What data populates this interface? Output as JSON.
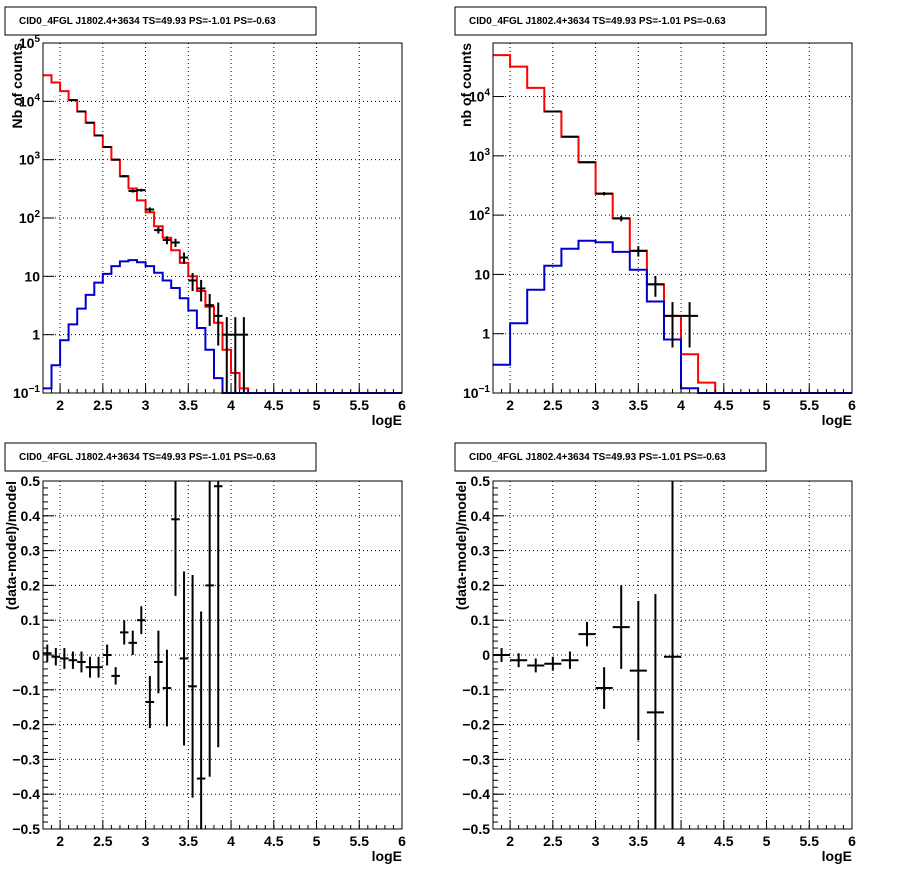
{
  "chart_data": [
    {
      "type": "histogram",
      "title": "CID0_4FGL J1802.4+3634 TS=49.93 PS=-1.01 PS=-0.63",
      "xlabel": "logE",
      "ylabel": "Nb of counts",
      "yscale": "log",
      "xlim": [
        1.8,
        6
      ],
      "ylim": [
        0.1,
        100000
      ],
      "x_ticks": [
        "2",
        "2.5",
        "3",
        "3.5",
        "4",
        "4.5",
        "5",
        "5.5",
        "6"
      ],
      "y_ticks": [
        "10^-1",
        "1",
        "10",
        "10^2",
        "10^3",
        "10^4",
        "10^5"
      ],
      "grid": true,
      "bin_edges": [
        1.8,
        1.9,
        2.0,
        2.1,
        2.2,
        2.3,
        2.4,
        2.5,
        2.6,
        2.7,
        2.8,
        2.9,
        3.0,
        3.1,
        3.2,
        3.3,
        3.4,
        3.5,
        3.6,
        3.7,
        3.8,
        3.9,
        4.0,
        4.1,
        4.2,
        4.3,
        4.4,
        4.5,
        4.6,
        4.7,
        4.8,
        4.9,
        5.0,
        5.1,
        5.2,
        5.3,
        5.4,
        5.5,
        5.6,
        5.7,
        5.8,
        5.9,
        6.0
      ],
      "series": [
        {
          "name": "",
          "color": "#ff0000",
          "style": "step",
          "values": [
            28000,
            21000,
            15000,
            10500,
            6700,
            4300,
            2600,
            1650,
            1000,
            520,
            320,
            200,
            125,
            72,
            46,
            28,
            17,
            10,
            5.6,
            3.0,
            1.6,
            0.55,
            0.22,
            0.12,
            0.1,
            0.1,
            0.1,
            0.1,
            0.1,
            0.1,
            0.1,
            0.1,
            0.1,
            0.1,
            0.1,
            0.1,
            0.1,
            0.1,
            0.1,
            0.1,
            0.1,
            0.1
          ]
        },
        {
          "name": "",
          "color": "#0000cc",
          "style": "step",
          "values": [
            0.12,
            0.3,
            0.8,
            1.5,
            2.8,
            4.8,
            7.8,
            11,
            15,
            18,
            19,
            17.5,
            15,
            11.5,
            8.5,
            6.3,
            4.2,
            2.6,
            1.3,
            0.55,
            0.18,
            0.1,
            0.1,
            0.1,
            0.1,
            0.1,
            0.1,
            0.1,
            0.1,
            0.1,
            0.1,
            0.1,
            0.1,
            0.1,
            0.1,
            0.1,
            0.1,
            0.1,
            0.1,
            0.1,
            0.1,
            0.1
          ]
        }
      ],
      "data_points": {
        "x": [
          2.15,
          2.25,
          2.35,
          2.45,
          2.55,
          2.65,
          2.75,
          2.85,
          2.95,
          3.05,
          3.15,
          3.25,
          3.35,
          3.45,
          3.55,
          3.65,
          3.75,
          3.85,
          3.95,
          4.05,
          4.15
        ],
        "y": [
          10500,
          6700,
          4300,
          2600,
          1650,
          1000,
          520,
          290,
          300,
          140,
          62,
          42,
          38,
          21,
          8.5,
          6.2,
          3.2,
          2.1,
          1.0,
          1.0,
          1.0
        ],
        "xerr": 0.05
      }
    },
    {
      "type": "histogram",
      "title": "CID0_4FGL J1802.4+3634 TS=49.93 PS=-1.01 PS=-0.63",
      "xlabel": "logE",
      "ylabel": "nb of counts",
      "yscale": "log",
      "xlim": [
        1.8,
        6
      ],
      "ylim": [
        0.1,
        80000
      ],
      "x_ticks": [
        "2",
        "2.5",
        "3",
        "3.5",
        "4",
        "4.5",
        "5",
        "5.5",
        "6"
      ],
      "y_ticks": [
        "10^-1",
        "1",
        "10",
        "10^2",
        "10^3",
        "10^4"
      ],
      "grid": true,
      "bin_edges": [
        1.8,
        2.0,
        2.2,
        2.4,
        2.6,
        2.8,
        3.0,
        3.2,
        3.4,
        3.6,
        3.8,
        4.0,
        4.2,
        4.4,
        4.6,
        4.8,
        5.0,
        5.2,
        5.4,
        5.6,
        5.8,
        6.0
      ],
      "series": [
        {
          "name": "",
          "color": "#ff0000",
          "style": "step",
          "values": [
            50000,
            32000,
            14000,
            5600,
            2100,
            780,
            230,
            88,
            25,
            6.8,
            2.0,
            0.45,
            0.15,
            0.1,
            0.1,
            0.1,
            0.1,
            0.1,
            0.1,
            0.1,
            0.1
          ]
        },
        {
          "name": "",
          "color": "#0000cc",
          "style": "step",
          "values": [
            0.3,
            1.5,
            5.5,
            14,
            27,
            37,
            35,
            24,
            12,
            3.5,
            0.8,
            0.12,
            0.1,
            0.1,
            0.1,
            0.1,
            0.1,
            0.1,
            0.1,
            0.1,
            0.1
          ]
        }
      ],
      "data_points": {
        "x": [
          2.5,
          2.7,
          2.9,
          3.1,
          3.3,
          3.5,
          3.7,
          3.9,
          4.1
        ],
        "y": [
          5600,
          2100,
          780,
          230,
          88,
          25,
          6.8,
          2.0,
          2.0
        ],
        "xerr": 0.1
      }
    },
    {
      "type": "scatter",
      "title": "CID0_4FGL J1802.4+3634 TS=49.93 PS=-1.01 PS=-0.63",
      "xlabel": "logE",
      "ylabel": "(data-model)/model",
      "xlim": [
        1.8,
        6
      ],
      "ylim": [
        -0.5,
        0.5
      ],
      "x_ticks": [
        "2",
        "2.5",
        "3",
        "3.5",
        "4",
        "4.5",
        "5",
        "5.5",
        "6"
      ],
      "y_ticks": [
        "-0.5",
        "-0.4",
        "-0.3",
        "-0.2",
        "-0.1",
        "0",
        "0.1",
        "0.2",
        "0.3",
        "0.4",
        "0.5"
      ],
      "grid": true,
      "series": [
        {
          "name": "",
          "x": [
            1.85,
            1.95,
            2.05,
            2.15,
            2.25,
            2.35,
            2.45,
            2.55,
            2.65,
            2.75,
            2.85,
            2.95,
            3.05,
            3.15,
            3.25,
            3.35,
            3.45,
            3.55,
            3.65,
            3.75,
            3.85
          ],
          "y": [
            0.005,
            -0.005,
            -0.01,
            -0.015,
            -0.02,
            -0.035,
            -0.035,
            0.0,
            -0.06,
            0.065,
            0.035,
            0.1,
            -0.135,
            -0.02,
            -0.095,
            0.39,
            -0.01,
            -0.09,
            -0.355,
            0.2,
            0.485
          ],
          "yerr": [
            0.025,
            0.025,
            0.03,
            0.025,
            0.03,
            0.03,
            0.03,
            0.03,
            0.025,
            0.035,
            0.035,
            0.04,
            0.075,
            0.09,
            0.11,
            0.22,
            0.25,
            0.32,
            0.48,
            0.55,
            0.75
          ],
          "xerr": 0.05
        }
      ]
    },
    {
      "type": "scatter",
      "title": "CID0_4FGL J1802.4+3634 TS=49.93 PS=-1.01 PS=-0.63",
      "xlabel": "logE",
      "ylabel": "(data-model)/model",
      "xlim": [
        1.8,
        6
      ],
      "ylim": [
        -0.5,
        0.5
      ],
      "x_ticks": [
        "2",
        "2.5",
        "3",
        "3.5",
        "4",
        "4.5",
        "5",
        "5.5",
        "6"
      ],
      "y_ticks": [
        "-0.5",
        "-0.4",
        "-0.3",
        "-0.2",
        "-0.1",
        "0",
        "0.1",
        "0.2",
        "0.3",
        "0.4",
        "0.5"
      ],
      "grid": true,
      "series": [
        {
          "name": "",
          "x": [
            1.9,
            2.1,
            2.3,
            2.5,
            2.7,
            2.9,
            3.1,
            3.3,
            3.5,
            3.7,
            3.9
          ],
          "y": [
            0.0,
            -0.015,
            -0.03,
            -0.025,
            -0.015,
            0.06,
            -0.095,
            0.08,
            -0.045,
            -0.165,
            -0.005
          ],
          "yerr": [
            0.02,
            0.02,
            0.02,
            0.02,
            0.025,
            0.035,
            0.06,
            0.12,
            0.2,
            0.34,
            0.55
          ],
          "xerr": 0.1
        }
      ]
    }
  ]
}
